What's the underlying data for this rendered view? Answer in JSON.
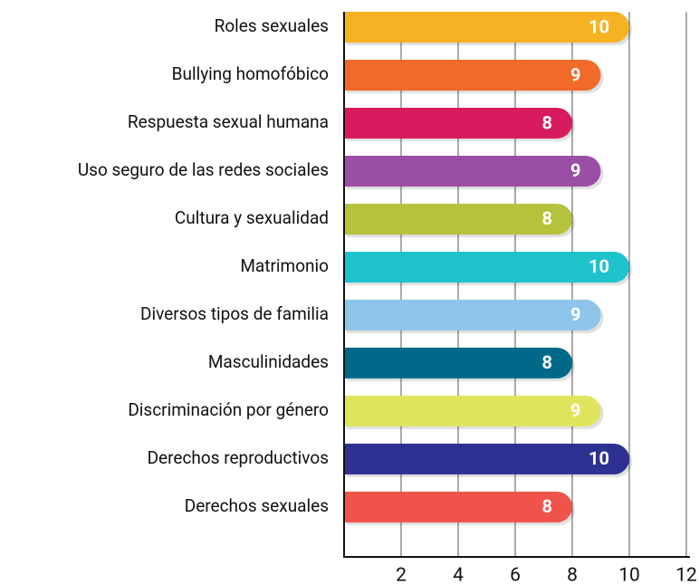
{
  "chart_data": {
    "type": "bar",
    "orientation": "horizontal",
    "categories": [
      "Roles sexuales",
      "Bullying homofóbico",
      "Respuesta sexual humana",
      "Uso seguro de las redes sociales",
      "Cultura y sexualidad",
      "Matrimonio",
      "Diversos tipos de familia",
      "Masculinidades",
      "Discriminación por género",
      "Derechos reproductivos",
      "Derechos sexuales"
    ],
    "values": [
      10,
      9,
      8,
      9,
      8,
      10,
      9,
      8,
      9,
      10,
      8
    ],
    "colors": [
      "#f5b324",
      "#f26a2a",
      "#d81b5e",
      "#9b4ea5",
      "#b5c23b",
      "#1fc3cb",
      "#8ec5e8",
      "#00698a",
      "#e0e55e",
      "#2e3192",
      "#f0534a"
    ],
    "xlim": [
      0,
      12
    ],
    "xticks": [
      2,
      4,
      6,
      8,
      10,
      12
    ],
    "grid": true
  }
}
